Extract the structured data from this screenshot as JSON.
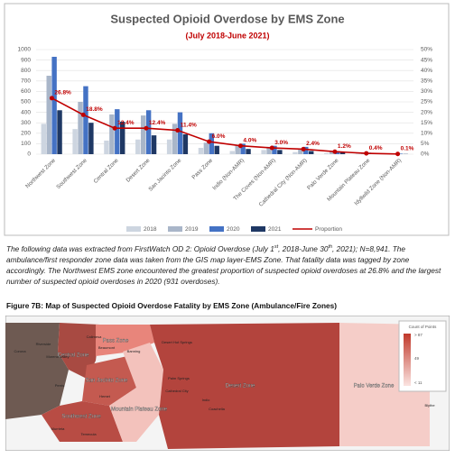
{
  "chart_data": {
    "type": "bar",
    "title": "Suspected Opioid Overdose by EMS Zone",
    "subtitle": "(July 2018-June 2021)",
    "categories": [
      "Northwest Zone",
      "Southwest Zone",
      "Central Zone",
      "Desert Zone",
      "San Jacinto Zone",
      "Pass Zone",
      "Indio (Non-AMR)",
      "The Coves (Non-AMR)",
      "Cathedral City (Non-AMR)",
      "Palo Verde Zone",
      "Mountain Plateau Zone",
      "Idyllwild Zone (Non-AMR)"
    ],
    "series": [
      {
        "name": "2018",
        "color": "#cdd5e0",
        "values": [
          290,
          240,
          130,
          140,
          140,
          60,
          30,
          40,
          20,
          10,
          5,
          2
        ]
      },
      {
        "name": "2019",
        "color": "#a9b6c9",
        "values": [
          750,
          500,
          380,
          370,
          290,
          110,
          90,
          70,
          50,
          30,
          10,
          4
        ]
      },
      {
        "name": "2020",
        "color": "#4472c4",
        "values": [
          931,
          650,
          430,
          420,
          400,
          200,
          100,
          80,
          70,
          30,
          15,
          5
        ]
      },
      {
        "name": "2021",
        "color": "#1f3864",
        "values": [
          420,
          300,
          310,
          180,
          190,
          80,
          50,
          40,
          30,
          20,
          5,
          2
        ]
      },
      {
        "name": "Proportion",
        "color": "#c00000",
        "type": "line",
        "axis": "y2",
        "values": [
          26.8,
          18.8,
          12.4,
          12.4,
          11.4,
          6.0,
          4.0,
          3.0,
          2.4,
          1.2,
          0.4,
          0.1
        ],
        "value_labels": [
          "26.8%",
          "18.8%",
          "12.4%",
          "12.4%",
          "11.4%",
          "6.0%",
          "4.0%",
          "3.0%",
          "2.4%",
          "1.2%",
          "0.4%",
          "0.1%"
        ]
      }
    ],
    "ylim": [
      0,
      1000
    ],
    "yticks": [
      0,
      100,
      200,
      300,
      400,
      500,
      600,
      700,
      800,
      900,
      1000
    ],
    "y2lim": [
      0,
      50
    ],
    "y2ticks": [
      {
        "value": 0,
        "label": "0%"
      },
      {
        "value": 5,
        "label": "5%"
      },
      {
        "value": 10,
        "label": "10%"
      },
      {
        "value": 15,
        "label": "15%"
      },
      {
        "value": 20,
        "label": "20%"
      },
      {
        "value": 25,
        "label": "25%"
      },
      {
        "value": 30,
        "label": "30%"
      },
      {
        "value": 35,
        "label": "35%"
      },
      {
        "value": 40,
        "label": "40%"
      },
      {
        "value": 45,
        "label": "45%"
      },
      {
        "value": 50,
        "label": "50%"
      }
    ],
    "grid": true,
    "legend": "bottom"
  },
  "paragraph": [
    "The following data was extracted from FirstWatch OD 2: Opioid Overdose (July 1",
    "st",
    ", 2018-June 30",
    "th",
    ", 2021); N=8,941. The ambulance/first responder zone data was taken from the GIS map layer-EMS Zone. That fatality data was tagged by zone accordingly. The Northwest EMS zone encountered the greatest proportion of suspected opioid overdoses at 26.8% and the largest number of suspected opioid overdoses in 2020 (931 overdoses)."
  ],
  "figure_caption": "Figure 7B: Map of Suspected Opioid Overdose Fatality by EMS Zone (Ambulance/Fire Zones)",
  "map": {
    "zones": [
      "Pass Zone",
      "Central Zone",
      "San Jacinto Zone",
      "Mountain Plateau Zone",
      "Desert Zone",
      "Palo Verde Zone",
      "Southwest Zone"
    ],
    "places": [
      "Calimesa",
      "Beaumont",
      "Banning",
      "Desert Hot Springs",
      "Palm Springs",
      "Cathedral City",
      "Indio",
      "Coachella",
      "Blythe",
      "Hemet",
      "Temecula",
      "Murrieta",
      "Perris",
      "Moreno Valley",
      "Riverside",
      "Corona"
    ],
    "legend_title": "Count of Points",
    "legend_labels": [
      "> 87",
      "49",
      "< 11"
    ]
  }
}
